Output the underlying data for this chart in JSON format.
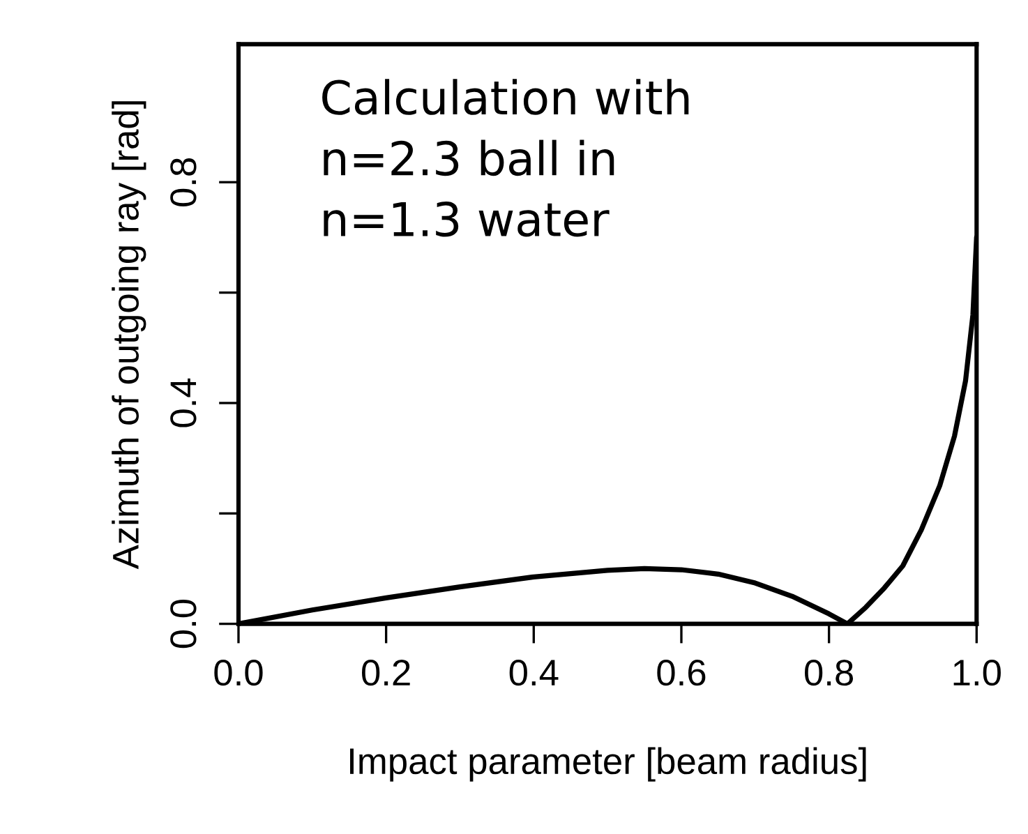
{
  "chart_data": {
    "type": "line",
    "xlabel": "Impact parameter [beam radius]",
    "ylabel": "Azimuth of outgoing ray [rad]",
    "annotations": [
      "Calculation with\nn=2.3 ball in\nn=1.3 water"
    ],
    "series": [
      {
        "color": "#000000",
        "x": [
          0,
          0.1,
          0.2,
          0.3,
          0.4,
          0.5,
          0.55,
          0.6,
          0.65,
          0.7,
          0.75,
          0.8,
          0.825,
          0.85,
          0.875,
          0.9,
          0.925,
          0.95,
          0.97,
          0.985,
          0.995,
          1.0
        ],
        "values": [
          0,
          0.025,
          0.047,
          0.067,
          0.085,
          0.097,
          0.1,
          0.098,
          0.09,
          0.074,
          0.05,
          0.018,
          0,
          0.03,
          0.065,
          0.105,
          0.17,
          0.25,
          0.34,
          0.44,
          0.56,
          0.7
        ]
      }
    ],
    "xlim": [
      0,
      1
    ],
    "ylim": [
      0,
      1.05
    ],
    "xticks": [
      {
        "value": 0,
        "label": "0.0"
      },
      {
        "value": 0.2,
        "label": "0.2"
      },
      {
        "value": 0.4,
        "label": "0.4"
      },
      {
        "value": 0.6,
        "label": "0.6"
      },
      {
        "value": 0.8,
        "label": "0.8"
      },
      {
        "value": 1,
        "label": "1.0"
      }
    ],
    "yticks": [
      {
        "value": 0,
        "label": "0.0"
      },
      {
        "value": 0.2,
        "label": null
      },
      {
        "value": 0.4,
        "label": "0.4"
      },
      {
        "value": 0.6,
        "label": null
      },
      {
        "value": 0.8,
        "label": "0.8"
      }
    ],
    "grid": false,
    "legend": false,
    "marker": "none",
    "line_style": "solid"
  }
}
